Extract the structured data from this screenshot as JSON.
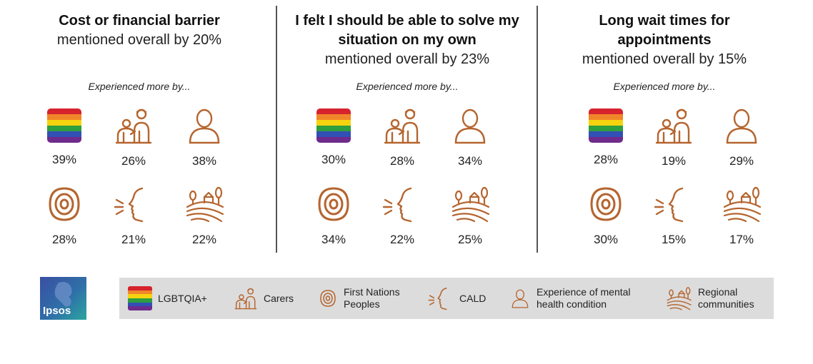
{
  "columns": [
    {
      "title": "Cost or financial barrier",
      "subtitle": "mentioned overall by 20%",
      "experienced": "Experienced more by...",
      "values": {
        "lgbtqia": "39%",
        "carers": "26%",
        "mental": "38%",
        "first_nations": "28%",
        "cald": "21%",
        "regional": "22%"
      }
    },
    {
      "title": "I felt I should be able to solve my situation on my own",
      "subtitle": "mentioned overall by 23%",
      "experienced": "Experienced more by...",
      "values": {
        "lgbtqia": "30%",
        "carers": "28%",
        "mental": "34%",
        "first_nations": "34%",
        "cald": "22%",
        "regional": "25%"
      }
    },
    {
      "title": "Long wait times for appointments",
      "subtitle": "mentioned overall by 15%",
      "experienced": "Experienced more by...",
      "values": {
        "lgbtqia": "28%",
        "carers": "19%",
        "mental": "29%",
        "first_nations": "30%",
        "cald": "15%",
        "regional": "17%"
      }
    }
  ],
  "legend": {
    "lgbtqia": "LGBTQIA+",
    "carers": "Carers",
    "first_nations": "First Nations\nPeoples",
    "cald": "CALD",
    "mental": "Experience of mental\nhealth condition",
    "regional": "Regional\ncommunities"
  },
  "logo": {
    "text": "Ipsos"
  },
  "colors": {
    "icon": "#b5652f",
    "legend_bg": "#dcdcdc",
    "divider": "#555555"
  }
}
